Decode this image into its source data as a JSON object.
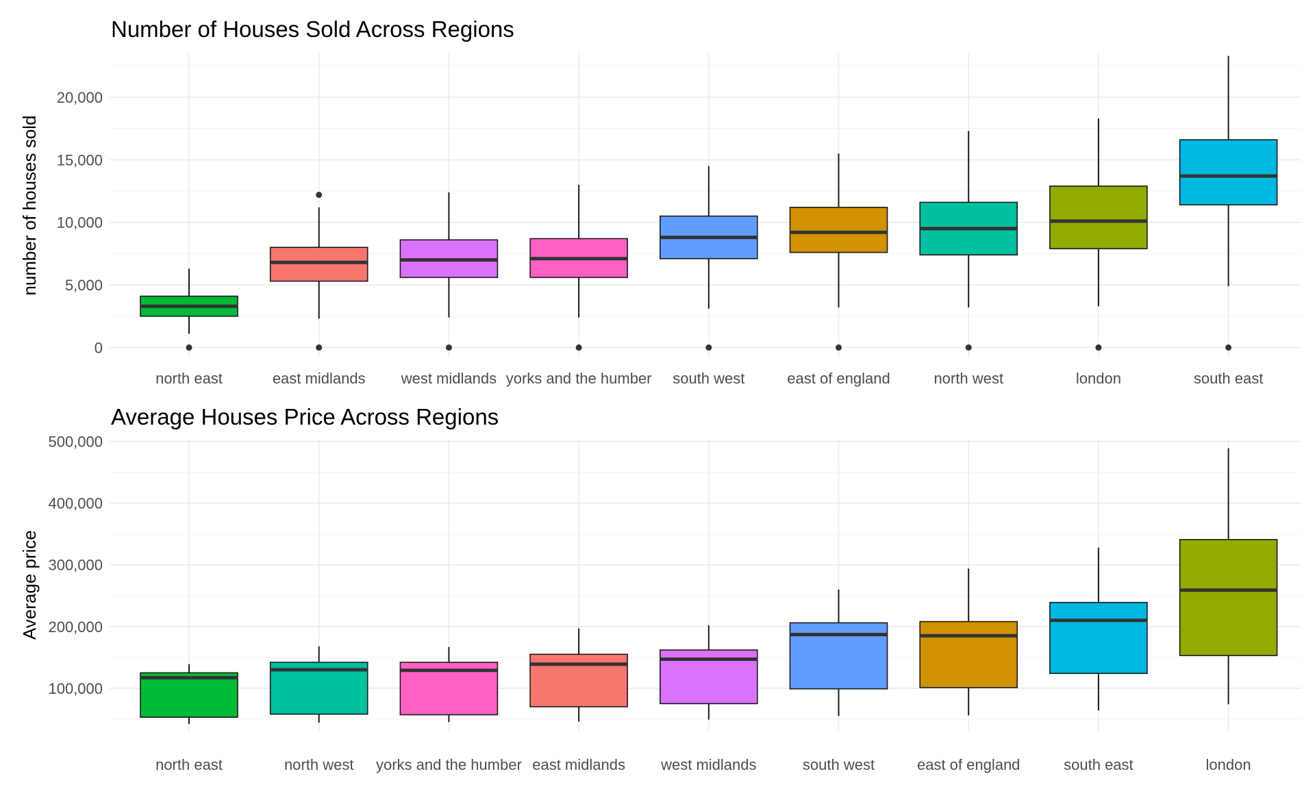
{
  "chart_data": [
    {
      "type": "box",
      "title": "Number of Houses Sold Across Regions",
      "xlabel": "",
      "ylabel": "number of houses sold",
      "ylim": [
        -800,
        23500
      ],
      "yticks": [
        0,
        5000,
        10000,
        15000,
        20000
      ],
      "ytick_labels": [
        "0",
        "5,000",
        "10,000",
        "15,000",
        "20,000"
      ],
      "grid": true,
      "legend": "none",
      "categories": [
        "north east",
        "east midlands",
        "west midlands",
        "yorks and the humber",
        "south west",
        "east of england",
        "north west",
        "london",
        "south east"
      ],
      "boxes": [
        {
          "category": "north east",
          "fill": "#00BA38",
          "min": 1100,
          "q1": 2500,
          "median": 3300,
          "q3": 4100,
          "max": 6300,
          "outliers": [
            0
          ]
        },
        {
          "category": "east midlands",
          "fill": "#F8766D",
          "min": 2300,
          "q1": 5300,
          "median": 6800,
          "q3": 8000,
          "max": 11200,
          "outliers": [
            0,
            12200
          ]
        },
        {
          "category": "west midlands",
          "fill": "#DB72FB",
          "min": 2400,
          "q1": 5600,
          "median": 7000,
          "q3": 8600,
          "max": 12400,
          "outliers": [
            0
          ]
        },
        {
          "category": "yorks and the humber",
          "fill": "#FF61C3",
          "min": 2400,
          "q1": 5600,
          "median": 7100,
          "q3": 8700,
          "max": 13000,
          "outliers": [
            0
          ]
        },
        {
          "category": "south west",
          "fill": "#619CFF",
          "min": 3100,
          "q1": 7100,
          "median": 8800,
          "q3": 10500,
          "max": 14500,
          "outliers": [
            0
          ]
        },
        {
          "category": "east of england",
          "fill": "#D39200",
          "min": 3200,
          "q1": 7600,
          "median": 9200,
          "q3": 11200,
          "max": 15500,
          "outliers": [
            0
          ]
        },
        {
          "category": "north west",
          "fill": "#00C19F",
          "min": 3200,
          "q1": 7400,
          "median": 9500,
          "q3": 11600,
          "max": 17300,
          "outliers": [
            0
          ]
        },
        {
          "category": "london",
          "fill": "#93AA00",
          "min": 3300,
          "q1": 7900,
          "median": 10100,
          "q3": 12900,
          "max": 18300,
          "outliers": [
            0
          ]
        },
        {
          "category": "south east",
          "fill": "#00B9E3",
          "min": 4900,
          "q1": 11400,
          "median": 13700,
          "q3": 16600,
          "max": 23300,
          "outliers": [
            0
          ]
        }
      ]
    },
    {
      "type": "box",
      "title": "Average Houses Price Across Regions",
      "xlabel": "",
      "ylabel": "Average price",
      "ylim": [
        31000,
        504000
      ],
      "yticks": [
        100000,
        200000,
        300000,
        400000,
        500000
      ],
      "ytick_labels": [
        "100,000",
        "200,000",
        "300,000",
        "400,000",
        "500,000"
      ],
      "grid": true,
      "legend": "none",
      "categories": [
        "north east",
        "north west",
        "yorks and the humber",
        "east midlands",
        "west midlands",
        "south west",
        "east of england",
        "south east",
        "london"
      ],
      "boxes": [
        {
          "category": "north east",
          "fill": "#00BA38",
          "min": 42000,
          "q1": 53000,
          "median": 117000,
          "q3": 125000,
          "max": 139000,
          "outliers": []
        },
        {
          "category": "north west",
          "fill": "#00C19F",
          "min": 44000,
          "q1": 58000,
          "median": 130000,
          "q3": 142000,
          "max": 168000,
          "outliers": []
        },
        {
          "category": "yorks and the humber",
          "fill": "#FF61C3",
          "min": 45000,
          "q1": 57000,
          "median": 129000,
          "q3": 142000,
          "max": 167000,
          "outliers": []
        },
        {
          "category": "east midlands",
          "fill": "#F8766D",
          "min": 46000,
          "q1": 70000,
          "median": 139000,
          "q3": 155000,
          "max": 197000,
          "outliers": []
        },
        {
          "category": "west midlands",
          "fill": "#DB72FB",
          "min": 49000,
          "q1": 75000,
          "median": 147000,
          "q3": 162000,
          "max": 202000,
          "outliers": []
        },
        {
          "category": "south west",
          "fill": "#619CFF",
          "min": 55000,
          "q1": 99000,
          "median": 187000,
          "q3": 206000,
          "max": 260000,
          "outliers": []
        },
        {
          "category": "east of england",
          "fill": "#D39200",
          "min": 56000,
          "q1": 101000,
          "median": 185000,
          "q3": 208000,
          "max": 294000,
          "outliers": []
        },
        {
          "category": "south east",
          "fill": "#00B9E3",
          "min": 64000,
          "q1": 124000,
          "median": 210000,
          "q3": 239000,
          "max": 328000,
          "outliers": []
        },
        {
          "category": "london",
          "fill": "#93AA00",
          "min": 74000,
          "q1": 153000,
          "median": 259000,
          "q3": 341000,
          "max": 489000,
          "outliers": []
        }
      ]
    }
  ]
}
